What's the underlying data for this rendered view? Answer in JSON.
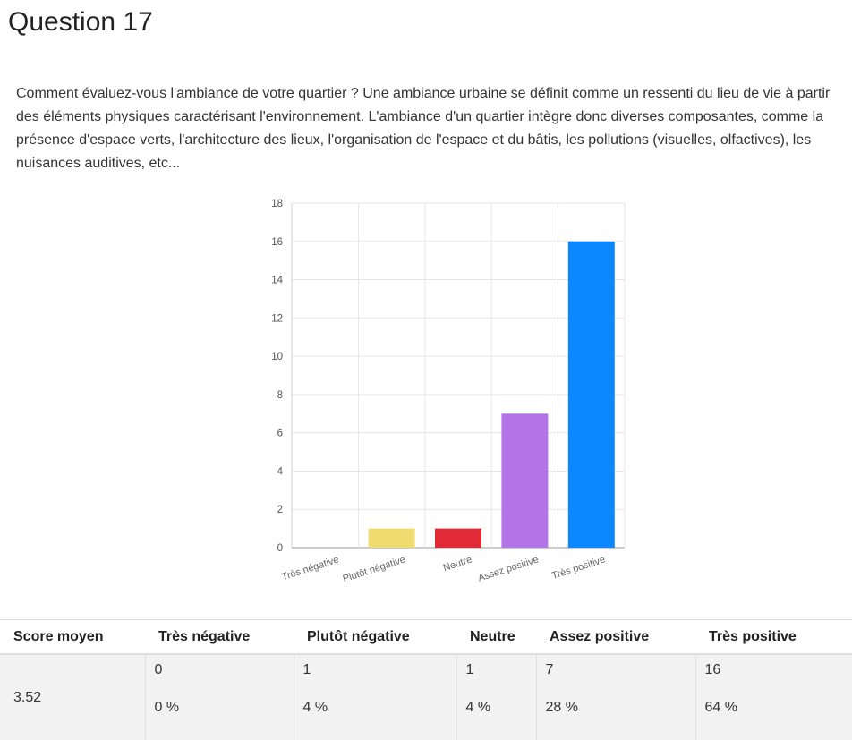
{
  "page": {
    "title": "Question 17",
    "question": "Comment évaluez-vous l'ambiance de votre quartier ?  Une ambiance urbaine se définit comme un ressenti du lieu de vie à partir des éléments physiques caractérisant l'environnement.  L'ambiance d'un quartier intègre donc diverses composantes, comme la présence d'espace verts, l'architecture des lieux, l'organisation de l'espace et du bâtis, les pollutions (visuelles, olfactives), les nuisances auditives, etc..."
  },
  "chart_data": {
    "type": "bar",
    "categories": [
      "Très négative",
      "Plutôt négative",
      "Neutre",
      "Assez positive",
      "Très positive"
    ],
    "values": [
      0,
      1,
      1,
      7,
      16
    ],
    "colors": [
      "#c0c0c0",
      "#f0dc6e",
      "#e02b36",
      "#b274e6",
      "#0d87ff"
    ],
    "ylim": [
      0,
      18
    ],
    "yticks": [
      0,
      2,
      4,
      6,
      8,
      10,
      12,
      14,
      16,
      18
    ],
    "grid": true,
    "legend": "none",
    "title": "",
    "xlabel": "",
    "ylabel": ""
  },
  "table": {
    "headers": [
      "Score moyen",
      "Très négative",
      "Plutôt négative",
      "Neutre",
      "Assez positive",
      "Très positive"
    ],
    "score": "3.52",
    "counts": [
      "0",
      "1",
      "1",
      "7",
      "16"
    ],
    "percents": [
      "0 %",
      "4 %",
      "4 %",
      "28 %",
      "64 %"
    ]
  }
}
